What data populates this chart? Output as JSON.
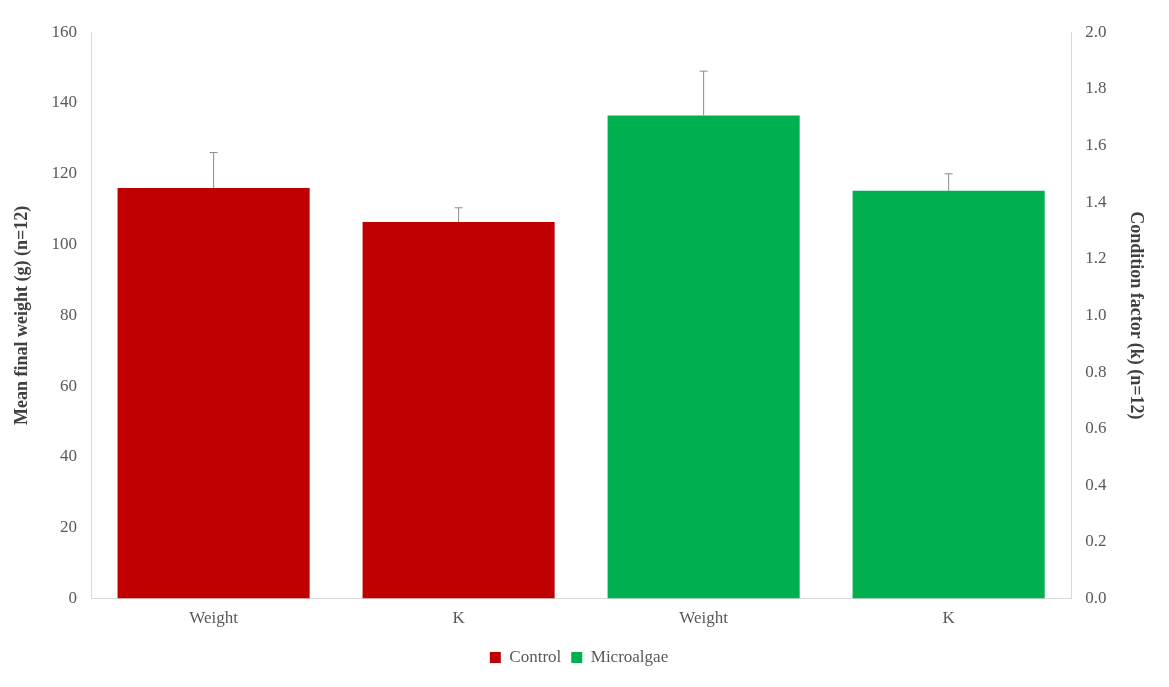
{
  "chart_data": {
    "type": "bar",
    "categories": [
      "Weight",
      "K",
      "Weight",
      "K"
    ],
    "ylabel": "Mean final weight (g) (n=12)",
    "y2label": "Condition factor (k) (n=12)",
    "ylim": [
      0,
      160
    ],
    "yticks": [
      0,
      20,
      40,
      60,
      80,
      100,
      120,
      140,
      160
    ],
    "y2lim": [
      0,
      2.0
    ],
    "y2ticks": [
      {
        "value": 0,
        "label": "0.0"
      },
      {
        "value": 0.2,
        "label": "0.2"
      },
      {
        "value": 0.4,
        "label": "0.4"
      },
      {
        "value": 0.6,
        "label": "0.6"
      },
      {
        "value": 0.8,
        "label": "0.8"
      },
      {
        "value": 1.0,
        "label": "1.0"
      },
      {
        "value": 1.2,
        "label": "1.2"
      },
      {
        "value": 1.4,
        "label": "1.4"
      },
      {
        "value": 1.6,
        "label": "1.6"
      },
      {
        "value": 1.8,
        "label": "1.8"
      },
      {
        "value": 2.0,
        "label": "2.0"
      }
    ],
    "series": [
      {
        "name": "Control",
        "color": "#c00000",
        "values": [
          116,
          null,
          null,
          null
        ],
        "errors": [
          [
            116,
            126
          ],
          null,
          null,
          null
        ]
      },
      {
        "color": "#c00000",
        "axis": "y2",
        "values": [
          null,
          1.33,
          null,
          null
        ],
        "errors": [
          null,
          [
            1.33,
            1.38
          ],
          null,
          null
        ]
      },
      {
        "name": "Microalgae",
        "color": "#00b050",
        "values": [
          null,
          null,
          136.5,
          null
        ],
        "errors": [
          null,
          null,
          [
            136.5,
            149
          ],
          null
        ]
      },
      {
        "color": "#00b050",
        "axis": "y2",
        "values": [
          null,
          null,
          null,
          1.44
        ],
        "errors": [
          null,
          null,
          null,
          [
            1.44,
            1.5
          ]
        ]
      }
    ],
    "grid": false,
    "legend": "bottom"
  }
}
